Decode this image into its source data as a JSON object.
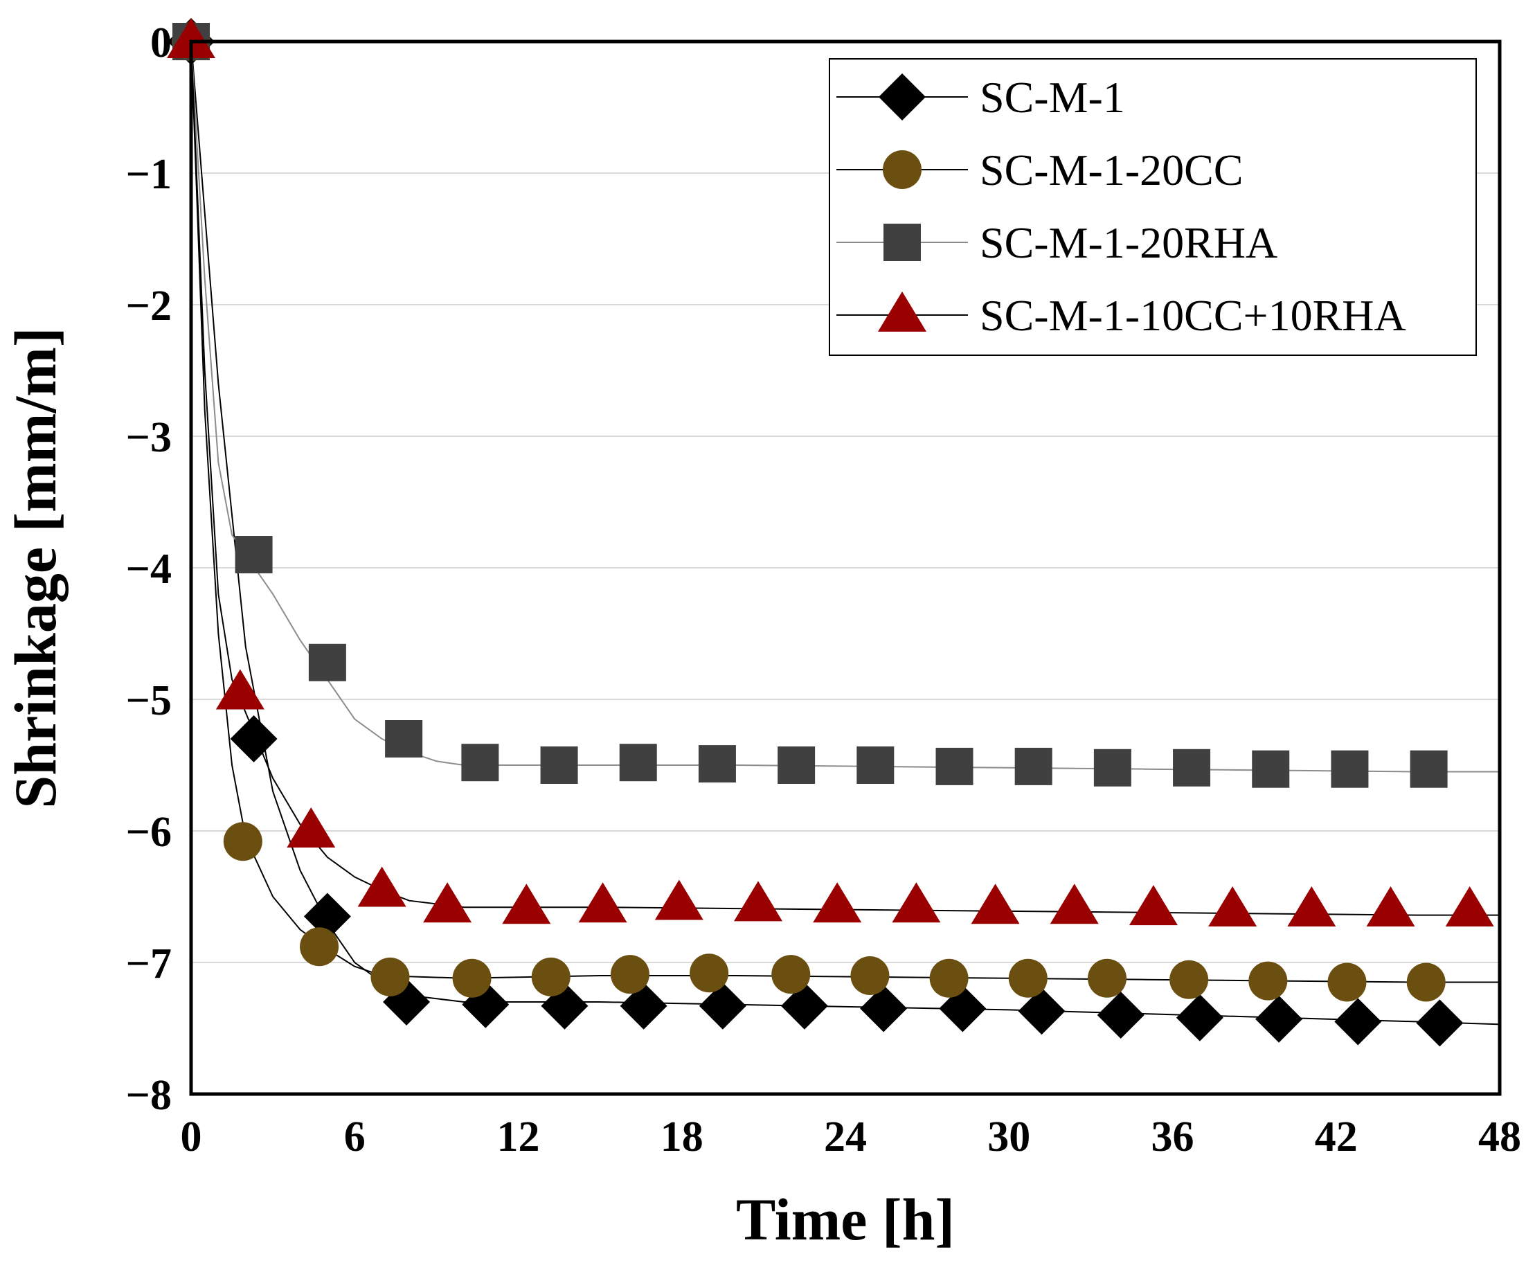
{
  "chart_data": {
    "type": "line",
    "title": "",
    "xlabel": "Time [h]",
    "ylabel": "Shrinkage [mm/m]",
    "xlim": [
      0,
      48
    ],
    "ylim": [
      -8,
      0
    ],
    "xticks": [
      0,
      6,
      12,
      18,
      24,
      30,
      36,
      42,
      48
    ],
    "xtick_labels": [
      "0",
      "6",
      "12",
      "18",
      "24",
      "30",
      "36",
      "42",
      "48"
    ],
    "yticks": [
      0,
      -1,
      -2,
      -3,
      -4,
      -5,
      -6,
      -7,
      -8
    ],
    "ytick_labels": [
      "0",
      "−1",
      "−2",
      "−3",
      "−4",
      "−5",
      "−6",
      "−7",
      "−8"
    ],
    "grid": "horizontal",
    "legend": "top-right",
    "series": [
      {
        "name": "SC-M-1",
        "marker": "diamond",
        "marker_color": "#000000",
        "line_color": "#000000",
        "line": [
          [
            0,
            0
          ],
          [
            1,
            -2.6
          ],
          [
            2,
            -4.6
          ],
          [
            3,
            -5.7
          ],
          [
            4,
            -6.3
          ],
          [
            5,
            -6.7
          ],
          [
            6,
            -7.0
          ],
          [
            7,
            -7.15
          ],
          [
            8,
            -7.25
          ],
          [
            10,
            -7.3
          ],
          [
            15,
            -7.3
          ],
          [
            20,
            -7.32
          ],
          [
            25,
            -7.34
          ],
          [
            30,
            -7.36
          ],
          [
            35,
            -7.39
          ],
          [
            40,
            -7.42
          ],
          [
            45,
            -7.45
          ],
          [
            48,
            -7.47
          ]
        ],
        "markers": [
          [
            0,
            0
          ],
          [
            2.3,
            -5.3
          ],
          [
            5.0,
            -6.65
          ],
          [
            7.9,
            -7.3
          ],
          [
            10.8,
            -7.32
          ],
          [
            13.7,
            -7.33
          ],
          [
            16.6,
            -7.33
          ],
          [
            19.5,
            -7.33
          ],
          [
            22.5,
            -7.33
          ],
          [
            25.4,
            -7.35
          ],
          [
            28.3,
            -7.35
          ],
          [
            31.2,
            -7.37
          ],
          [
            34.1,
            -7.4
          ],
          [
            37.0,
            -7.42
          ],
          [
            39.9,
            -7.43
          ],
          [
            42.8,
            -7.45
          ],
          [
            45.8,
            -7.46
          ]
        ]
      },
      {
        "name": "SC-M-1-20CC",
        "marker": "circle",
        "marker_color": "#6b4f10",
        "line_color": "#000000",
        "line": [
          [
            0,
            0
          ],
          [
            0.5,
            -2.8
          ],
          [
            1,
            -4.5
          ],
          [
            1.5,
            -5.5
          ],
          [
            2,
            -6.05
          ],
          [
            3,
            -6.5
          ],
          [
            4,
            -6.75
          ],
          [
            5,
            -6.9
          ],
          [
            6,
            -7.03
          ],
          [
            7,
            -7.1
          ],
          [
            10,
            -7.12
          ],
          [
            15,
            -7.1
          ],
          [
            20,
            -7.1
          ],
          [
            25,
            -7.11
          ],
          [
            30,
            -7.12
          ],
          [
            35,
            -7.13
          ],
          [
            40,
            -7.14
          ],
          [
            45,
            -7.15
          ],
          [
            48,
            -7.15
          ]
        ],
        "markers": [
          [
            0,
            0
          ],
          [
            1.9,
            -6.08
          ],
          [
            4.7,
            -6.88
          ],
          [
            7.3,
            -7.11
          ],
          [
            10.3,
            -7.12
          ],
          [
            13.2,
            -7.11
          ],
          [
            16.1,
            -7.09
          ],
          [
            19.0,
            -7.08
          ],
          [
            22.0,
            -7.09
          ],
          [
            24.9,
            -7.1
          ],
          [
            27.8,
            -7.12
          ],
          [
            30.7,
            -7.12
          ],
          [
            33.6,
            -7.12
          ],
          [
            36.6,
            -7.13
          ],
          [
            39.5,
            -7.14
          ],
          [
            42.4,
            -7.15
          ],
          [
            45.3,
            -7.15
          ]
        ]
      },
      {
        "name": "SC-M-1-20RHA",
        "marker": "square",
        "marker_color": "#404040",
        "line_color": "#8c8c8c",
        "line": [
          [
            0,
            0
          ],
          [
            0.5,
            -1.8
          ],
          [
            1,
            -3.2
          ],
          [
            1.5,
            -3.75
          ],
          [
            2,
            -3.9
          ],
          [
            3,
            -4.2
          ],
          [
            4,
            -4.55
          ],
          [
            5,
            -4.85
          ],
          [
            6,
            -5.15
          ],
          [
            7,
            -5.3
          ],
          [
            8,
            -5.4
          ],
          [
            9,
            -5.47
          ],
          [
            10,
            -5.5
          ],
          [
            15,
            -5.5
          ],
          [
            20,
            -5.5
          ],
          [
            25,
            -5.51
          ],
          [
            30,
            -5.52
          ],
          [
            35,
            -5.53
          ],
          [
            40,
            -5.54
          ],
          [
            45,
            -5.55
          ],
          [
            48,
            -5.55
          ]
        ],
        "markers": [
          [
            0,
            0
          ],
          [
            2.3,
            -3.9
          ],
          [
            5.0,
            -4.72
          ],
          [
            7.8,
            -5.3
          ],
          [
            10.6,
            -5.48
          ],
          [
            13.5,
            -5.5
          ],
          [
            16.4,
            -5.48
          ],
          [
            19.3,
            -5.49
          ],
          [
            22.2,
            -5.5
          ],
          [
            25.1,
            -5.5
          ],
          [
            28.0,
            -5.51
          ],
          [
            30.9,
            -5.51
          ],
          [
            33.8,
            -5.52
          ],
          [
            36.7,
            -5.52
          ],
          [
            39.6,
            -5.53
          ],
          [
            42.5,
            -5.53
          ],
          [
            45.4,
            -5.53
          ]
        ]
      },
      {
        "name": "SC-M-1-10CC+10RHA",
        "marker": "triangle",
        "marker_color": "#9b0000",
        "line_color": "#000000",
        "line": [
          [
            0,
            0
          ],
          [
            0.5,
            -2.5
          ],
          [
            1,
            -4.2
          ],
          [
            1.5,
            -4.85
          ],
          [
            2,
            -5.1
          ],
          [
            3,
            -5.6
          ],
          [
            4,
            -5.95
          ],
          [
            5,
            -6.2
          ],
          [
            6,
            -6.35
          ],
          [
            7,
            -6.45
          ],
          [
            8,
            -6.53
          ],
          [
            10,
            -6.58
          ],
          [
            15,
            -6.58
          ],
          [
            20,
            -6.59
          ],
          [
            25,
            -6.6
          ],
          [
            30,
            -6.61
          ],
          [
            35,
            -6.62
          ],
          [
            40,
            -6.63
          ],
          [
            45,
            -6.64
          ],
          [
            48,
            -6.64
          ]
        ],
        "markers": [
          [
            0,
            0
          ],
          [
            1.8,
            -4.95
          ],
          [
            4.4,
            -6.0
          ],
          [
            7.0,
            -6.45
          ],
          [
            9.4,
            -6.57
          ],
          [
            12.3,
            -6.58
          ],
          [
            15.1,
            -6.57
          ],
          [
            17.9,
            -6.55
          ],
          [
            20.8,
            -6.56
          ],
          [
            23.7,
            -6.57
          ],
          [
            26.6,
            -6.57
          ],
          [
            29.5,
            -6.58
          ],
          [
            32.4,
            -6.58
          ],
          [
            35.3,
            -6.59
          ],
          [
            38.2,
            -6.6
          ],
          [
            41.1,
            -6.6
          ],
          [
            44.0,
            -6.6
          ],
          [
            46.9,
            -6.6
          ]
        ]
      }
    ]
  }
}
